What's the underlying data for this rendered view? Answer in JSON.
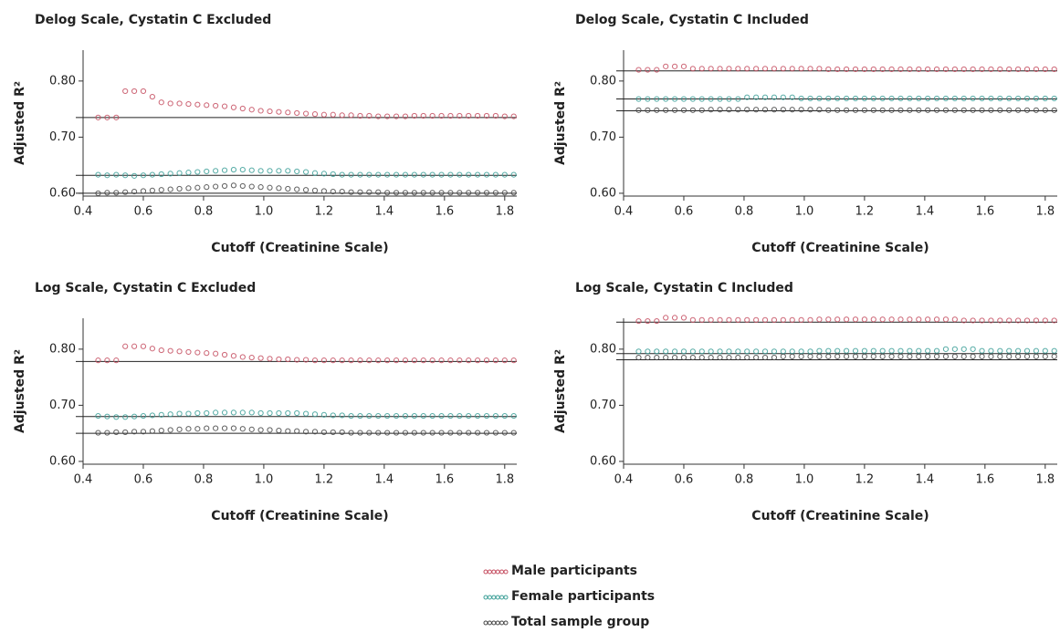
{
  "chart_data": [
    {
      "type": "scatter",
      "title": "Delog Scale, Cystatin C Excluded",
      "x_label": "Cutoff (Creatinine Scale)",
      "y_label": "Adjusted R²",
      "xlim": [
        0.4,
        1.84
      ],
      "xticks": [
        0.4,
        0.6,
        0.8,
        {
          "value": 1,
          "label": "1.0"
        },
        1.2,
        1.4,
        1.6,
        1.8
      ],
      "ylim": [
        0.595,
        0.855
      ],
      "yticks": [
        {
          "value": 0.6,
          "label": "0.60"
        },
        {
          "value": 0.7,
          "label": "0.70"
        },
        {
          "value": 0.8,
          "label": "0.80"
        }
      ],
      "hlines": [
        0.735,
        0.632,
        0.6
      ],
      "x": [
        0.45,
        0.48,
        0.51,
        0.54,
        0.57,
        0.6,
        0.63,
        0.66,
        0.69,
        0.72,
        0.75,
        0.78,
        0.81,
        0.84,
        0.87,
        0.9,
        0.93,
        0.96,
        0.99,
        1.02,
        1.05,
        1.08,
        1.11,
        1.14,
        1.17,
        1.2,
        1.23,
        1.26,
        1.29,
        1.32,
        1.35,
        1.38,
        1.41,
        1.44,
        1.47,
        1.5,
        1.53,
        1.56,
        1.59,
        1.62,
        1.65,
        1.68,
        1.71,
        1.74,
        1.77,
        1.8,
        1.83
      ],
      "series": [
        {
          "color": "#c44b5e",
          "values": [
            0.735,
            0.735,
            0.735,
            0.782,
            0.782,
            0.782,
            0.772,
            0.762,
            0.76,
            0.76,
            0.759,
            0.758,
            0.757,
            0.756,
            0.755,
            0.753,
            0.751,
            0.749,
            0.747,
            0.746,
            0.745,
            0.744,
            0.743,
            0.742,
            0.741,
            0.74,
            0.74,
            0.739,
            0.739,
            0.738,
            0.738,
            0.737,
            0.737,
            0.737,
            0.737,
            0.738,
            0.738,
            0.738,
            0.738,
            0.738,
            0.738,
            0.738,
            0.738,
            0.738,
            0.738,
            0.737,
            0.737
          ]
        },
        {
          "color": "#3a9e96",
          "values": [
            0.633,
            0.632,
            0.633,
            0.632,
            0.631,
            0.632,
            0.633,
            0.634,
            0.635,
            0.636,
            0.637,
            0.638,
            0.639,
            0.64,
            0.641,
            0.642,
            0.642,
            0.641,
            0.64,
            0.64,
            0.64,
            0.64,
            0.639,
            0.638,
            0.636,
            0.635,
            0.634,
            0.633,
            0.633,
            0.633,
            0.633,
            0.633,
            0.633,
            0.633,
            0.633,
            0.633,
            0.633,
            0.633,
            0.633,
            0.633,
            0.633,
            0.633,
            0.633,
            0.633,
            0.633,
            0.633,
            0.633
          ]
        },
        {
          "color": "#444444",
          "values": [
            0.6,
            0.601,
            0.601,
            0.602,
            0.603,
            0.604,
            0.605,
            0.606,
            0.607,
            0.608,
            0.609,
            0.61,
            0.611,
            0.612,
            0.613,
            0.614,
            0.613,
            0.612,
            0.611,
            0.61,
            0.609,
            0.608,
            0.607,
            0.606,
            0.605,
            0.604,
            0.603,
            0.603,
            0.602,
            0.602,
            0.602,
            0.602,
            0.601,
            0.601,
            0.601,
            0.601,
            0.601,
            0.601,
            0.601,
            0.601,
            0.601,
            0.601,
            0.601,
            0.601,
            0.601,
            0.601,
            0.601
          ]
        }
      ]
    },
    {
      "type": "scatter",
      "title": "Delog Scale, Cystatin C Included",
      "x_label": "Cutoff (Creatinine Scale)",
      "y_label": "Adjusted R²",
      "xlim": [
        0.4,
        1.84
      ],
      "xticks": [
        0.4,
        0.6,
        0.8,
        {
          "value": 1,
          "label": "1.0"
        },
        1.2,
        1.4,
        1.6,
        1.8
      ],
      "ylim": [
        0.595,
        0.855
      ],
      "yticks": [
        {
          "value": 0.6,
          "label": "0.60"
        },
        {
          "value": 0.7,
          "label": "0.70"
        },
        {
          "value": 0.8,
          "label": "0.80"
        }
      ],
      "hlines": [
        0.818,
        0.768,
        0.747
      ],
      "x": [
        0.45,
        0.48,
        0.51,
        0.54,
        0.57,
        0.6,
        0.63,
        0.66,
        0.69,
        0.72,
        0.75,
        0.78,
        0.81,
        0.84,
        0.87,
        0.9,
        0.93,
        0.96,
        0.99,
        1.02,
        1.05,
        1.08,
        1.11,
        1.14,
        1.17,
        1.2,
        1.23,
        1.26,
        1.29,
        1.32,
        1.35,
        1.38,
        1.41,
        1.44,
        1.47,
        1.5,
        1.53,
        1.56,
        1.59,
        1.62,
        1.65,
        1.68,
        1.71,
        1.74,
        1.77,
        1.8,
        1.83
      ],
      "series": [
        {
          "color": "#c44b5e",
          "values": [
            0.82,
            0.82,
            0.82,
            0.826,
            0.826,
            0.826,
            0.822,
            0.822,
            0.822,
            0.822,
            0.822,
            0.822,
            0.822,
            0.822,
            0.822,
            0.822,
            0.822,
            0.822,
            0.822,
            0.822,
            0.822,
            0.821,
            0.821,
            0.821,
            0.821,
            0.821,
            0.821,
            0.821,
            0.821,
            0.821,
            0.821,
            0.821,
            0.821,
            0.821,
            0.821,
            0.821,
            0.821,
            0.821,
            0.821,
            0.821,
            0.821,
            0.821,
            0.821,
            0.821,
            0.821,
            0.821,
            0.821
          ]
        },
        {
          "color": "#3a9e96",
          "values": [
            0.768,
            0.768,
            0.768,
            0.768,
            0.768,
            0.768,
            0.768,
            0.768,
            0.768,
            0.768,
            0.768,
            0.768,
            0.771,
            0.771,
            0.771,
            0.771,
            0.771,
            0.771,
            0.769,
            0.769,
            0.769,
            0.769,
            0.769,
            0.769,
            0.769,
            0.769,
            0.769,
            0.769,
            0.769,
            0.769,
            0.769,
            0.769,
            0.769,
            0.769,
            0.769,
            0.769,
            0.769,
            0.769,
            0.769,
            0.769,
            0.769,
            0.769,
            0.769,
            0.769,
            0.769,
            0.769,
            0.769
          ]
        },
        {
          "color": "#444444",
          "values": [
            0.748,
            0.748,
            0.748,
            0.748,
            0.748,
            0.748,
            0.748,
            0.748,
            0.749,
            0.749,
            0.749,
            0.749,
            0.749,
            0.749,
            0.749,
            0.749,
            0.749,
            0.749,
            0.749,
            0.749,
            0.749,
            0.748,
            0.748,
            0.748,
            0.748,
            0.748,
            0.748,
            0.748,
            0.748,
            0.748,
            0.748,
            0.748,
            0.748,
            0.748,
            0.748,
            0.748,
            0.748,
            0.748,
            0.748,
            0.748,
            0.748,
            0.748,
            0.748,
            0.748,
            0.748,
            0.748,
            0.748
          ]
        }
      ]
    },
    {
      "type": "scatter",
      "title": "Log Scale, Cystatin C Excluded",
      "x_label": "Cutoff (Creatinine Scale)",
      "y_label": "Adjusted R²",
      "xlim": [
        0.4,
        1.84
      ],
      "xticks": [
        0.4,
        0.6,
        0.8,
        {
          "value": 1,
          "label": "1.0"
        },
        1.2,
        1.4,
        1.6,
        1.8
      ],
      "ylim": [
        0.595,
        0.855
      ],
      "yticks": [
        {
          "value": 0.6,
          "label": "0.60"
        },
        {
          "value": 0.7,
          "label": "0.70"
        },
        {
          "value": 0.8,
          "label": "0.80"
        }
      ],
      "hlines": [
        0.778,
        0.68,
        0.65
      ],
      "x": [
        0.45,
        0.48,
        0.51,
        0.54,
        0.57,
        0.6,
        0.63,
        0.66,
        0.69,
        0.72,
        0.75,
        0.78,
        0.81,
        0.84,
        0.87,
        0.9,
        0.93,
        0.96,
        0.99,
        1.02,
        1.05,
        1.08,
        1.11,
        1.14,
        1.17,
        1.2,
        1.23,
        1.26,
        1.29,
        1.32,
        1.35,
        1.38,
        1.41,
        1.44,
        1.47,
        1.5,
        1.53,
        1.56,
        1.59,
        1.62,
        1.65,
        1.68,
        1.71,
        1.74,
        1.77,
        1.8,
        1.83
      ],
      "series": [
        {
          "color": "#c44b5e",
          "values": [
            0.78,
            0.78,
            0.78,
            0.805,
            0.805,
            0.805,
            0.801,
            0.798,
            0.797,
            0.796,
            0.795,
            0.794,
            0.793,
            0.792,
            0.79,
            0.788,
            0.786,
            0.785,
            0.784,
            0.783,
            0.782,
            0.782,
            0.781,
            0.781,
            0.78,
            0.78,
            0.78,
            0.78,
            0.78,
            0.78,
            0.78,
            0.78,
            0.78,
            0.78,
            0.78,
            0.78,
            0.78,
            0.78,
            0.78,
            0.78,
            0.78,
            0.78,
            0.78,
            0.78,
            0.78,
            0.78,
            0.78
          ]
        },
        {
          "color": "#3a9e96",
          "values": [
            0.681,
            0.68,
            0.679,
            0.679,
            0.68,
            0.681,
            0.682,
            0.683,
            0.684,
            0.685,
            0.685,
            0.686,
            0.686,
            0.687,
            0.687,
            0.687,
            0.687,
            0.687,
            0.686,
            0.686,
            0.686,
            0.686,
            0.686,
            0.685,
            0.684,
            0.683,
            0.682,
            0.682,
            0.681,
            0.681,
            0.681,
            0.681,
            0.681,
            0.681,
            0.681,
            0.681,
            0.681,
            0.681,
            0.681,
            0.681,
            0.681,
            0.681,
            0.681,
            0.681,
            0.681,
            0.681,
            0.681
          ]
        },
        {
          "color": "#444444",
          "values": [
            0.651,
            0.651,
            0.652,
            0.652,
            0.653,
            0.653,
            0.654,
            0.655,
            0.656,
            0.657,
            0.658,
            0.658,
            0.659,
            0.659,
            0.659,
            0.659,
            0.658,
            0.657,
            0.656,
            0.656,
            0.655,
            0.654,
            0.654,
            0.653,
            0.653,
            0.652,
            0.652,
            0.652,
            0.651,
            0.651,
            0.651,
            0.651,
            0.651,
            0.651,
            0.651,
            0.651,
            0.651,
            0.651,
            0.651,
            0.651,
            0.651,
            0.651,
            0.651,
            0.651,
            0.651,
            0.651,
            0.651
          ]
        }
      ]
    },
    {
      "type": "scatter",
      "title": "Log Scale, Cystatin C Included",
      "x_label": "Cutoff (Creatinine Scale)",
      "y_label": "Adjusted R²",
      "xlim": [
        0.4,
        1.84
      ],
      "xticks": [
        0.4,
        0.6,
        0.8,
        {
          "value": 1,
          "label": "1.0"
        },
        1.2,
        1.4,
        1.6,
        1.8
      ],
      "ylim": [
        0.595,
        0.855
      ],
      "yticks": [
        {
          "value": 0.6,
          "label": "0.60"
        },
        {
          "value": 0.7,
          "label": "0.70"
        },
        {
          "value": 0.8,
          "label": "0.80"
        }
      ],
      "hlines": [
        0.848,
        0.792,
        0.781
      ],
      "x": [
        0.45,
        0.48,
        0.51,
        0.54,
        0.57,
        0.6,
        0.63,
        0.66,
        0.69,
        0.72,
        0.75,
        0.78,
        0.81,
        0.84,
        0.87,
        0.9,
        0.93,
        0.96,
        0.99,
        1.02,
        1.05,
        1.08,
        1.11,
        1.14,
        1.17,
        1.2,
        1.23,
        1.26,
        1.29,
        1.32,
        1.35,
        1.38,
        1.41,
        1.44,
        1.47,
        1.5,
        1.53,
        1.56,
        1.59,
        1.62,
        1.65,
        1.68,
        1.71,
        1.74,
        1.77,
        1.8,
        1.83
      ],
      "series": [
        {
          "color": "#c44b5e",
          "values": [
            0.85,
            0.85,
            0.85,
            0.856,
            0.856,
            0.856,
            0.852,
            0.852,
            0.852,
            0.852,
            0.852,
            0.852,
            0.852,
            0.852,
            0.852,
            0.852,
            0.852,
            0.852,
            0.852,
            0.852,
            0.853,
            0.853,
            0.853,
            0.853,
            0.853,
            0.853,
            0.853,
            0.853,
            0.853,
            0.853,
            0.853,
            0.853,
            0.853,
            0.853,
            0.853,
            0.853,
            0.851,
            0.851,
            0.851,
            0.851,
            0.851,
            0.851,
            0.851,
            0.851,
            0.851,
            0.851,
            0.851
          ]
        },
        {
          "color": "#3a9e96",
          "values": [
            0.796,
            0.796,
            0.796,
            0.796,
            0.796,
            0.796,
            0.796,
            0.796,
            0.796,
            0.796,
            0.796,
            0.796,
            0.796,
            0.796,
            0.796,
            0.796,
            0.796,
            0.796,
            0.796,
            0.796,
            0.797,
            0.797,
            0.797,
            0.797,
            0.797,
            0.797,
            0.797,
            0.797,
            0.797,
            0.797,
            0.797,
            0.797,
            0.797,
            0.797,
            0.8,
            0.8,
            0.8,
            0.8,
            0.797,
            0.797,
            0.797,
            0.797,
            0.797,
            0.797,
            0.797,
            0.797,
            0.797
          ]
        },
        {
          "color": "#444444",
          "values": [
            0.785,
            0.785,
            0.785,
            0.785,
            0.785,
            0.785,
            0.785,
            0.785,
            0.785,
            0.785,
            0.785,
            0.785,
            0.785,
            0.785,
            0.785,
            0.785,
            0.787,
            0.787,
            0.787,
            0.787,
            0.787,
            0.787,
            0.787,
            0.787,
            0.787,
            0.787,
            0.787,
            0.787,
            0.787,
            0.787,
            0.787,
            0.787,
            0.787,
            0.787,
            0.787,
            0.787,
            0.787,
            0.787,
            0.787,
            0.787,
            0.787,
            0.787,
            0.787,
            0.787,
            0.787,
            0.787,
            0.787
          ]
        }
      ]
    }
  ],
  "legend": [
    {
      "name": "Male participants",
      "color": "#c44b5e"
    },
    {
      "name": "Female participants",
      "color": "#3a9e96"
    },
    {
      "name": "Total sample group",
      "color": "#444444"
    }
  ]
}
